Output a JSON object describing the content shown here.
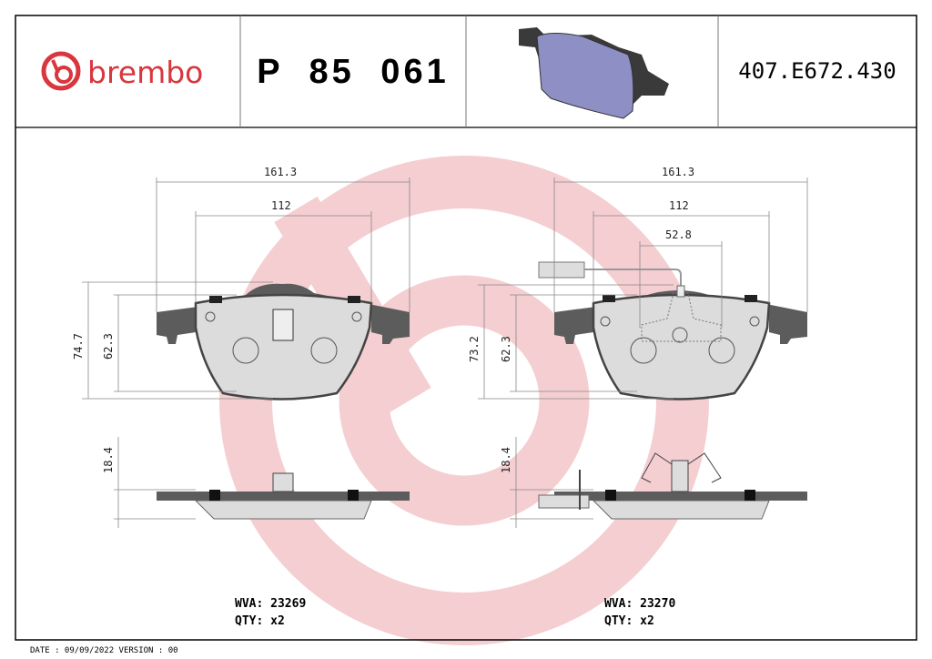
{
  "header": {
    "brand": "brembo",
    "part_number": "P 85 061",
    "reference_code": "407.E672.430"
  },
  "colors": {
    "brand_red": "#d9363e",
    "watermark_pink": "#f3c6c9",
    "backing_plate": "#5c5c5c",
    "friction_material": "#dcdcdc",
    "thumbnail_pad": "#8e8fc4"
  },
  "left_pad": {
    "dimensions": {
      "width_overall": "161.3",
      "width_inner": "112",
      "height_overall": "74.7",
      "height_lining": "62.3",
      "thickness": "18.4"
    },
    "wva_label": "WVA:",
    "wva": "23269",
    "qty_label": "QTY:",
    "qty": "x2"
  },
  "right_pad": {
    "dimensions": {
      "width_overall": "161.3",
      "width_inner": "112",
      "sensor_spacing": "52.8",
      "height_overall": "73.2",
      "height_lining": "62.3",
      "thickness": "18.4"
    },
    "wva_label": "WVA:",
    "wva": "23270",
    "qty_label": "QTY:",
    "qty": "x2"
  },
  "footer": "DATE : 09/09/2022 VERSION : 00"
}
